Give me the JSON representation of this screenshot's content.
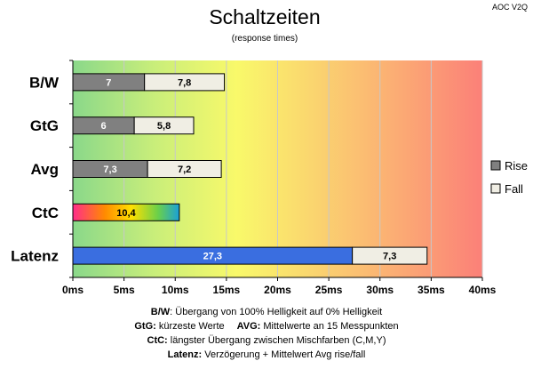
{
  "chart_data": {
    "type": "bar",
    "orientation": "horizontal",
    "stacked": true,
    "title": "Schaltzeiten",
    "subtitle": "(response times)",
    "corner_label": "AOC V2Q",
    "categories": [
      "B/W",
      "GtG",
      "Avg",
      "CtC",
      "Latenz"
    ],
    "series": [
      {
        "name": "Rise",
        "values": [
          7,
          6,
          7.3,
          10.4,
          27.3
        ],
        "labels": [
          "7",
          "6",
          "7,3",
          "10,4",
          "27,3"
        ]
      },
      {
        "name": "Fall",
        "values": [
          7.8,
          5.8,
          7.2,
          null,
          7.3
        ],
        "labels": [
          "7,8",
          "5,8",
          "7,2",
          "",
          "7,3"
        ]
      }
    ],
    "xlim": [
      0,
      40
    ],
    "xticks": [
      0,
      5,
      10,
      15,
      20,
      25,
      30,
      35,
      40
    ],
    "xtick_labels": [
      "0ms",
      "5ms",
      "10ms",
      "15ms",
      "20ms",
      "25ms",
      "30ms",
      "35ms",
      "40ms"
    ],
    "legend_position": "right",
    "background": "gradient green-yellow-red",
    "colors": {
      "rise": "#808080",
      "fall": "#f0eee4",
      "latenz_rise": "#3a6ee0",
      "ctc_gradient": [
        "#ff2d8a",
        "#ff8a00",
        "#ffe000",
        "#6ad04a",
        "#1aa0d8"
      ],
      "bg_green": "#8ad88a",
      "bg_yellow": "#f9f96a",
      "bg_red": "#fb8078"
    }
  },
  "notes": [
    {
      "key": "B/W",
      "text": ":  Übergang von 100% Helligkeit auf 0% Helligkeit"
    },
    {
      "key": "GtG:",
      "text": " kürzeste  Werte",
      "key2": "AVG:",
      "text2": " Mittelwerte  an 15 Messpunkten"
    },
    {
      "key": "CtC:",
      "text": " längster Übergang  zwischen Mischfarben  (C,M,Y)"
    },
    {
      "key": "Latenz:",
      "text": " Verzögerung  + Mittelwert  Avg rise/fall"
    }
  ]
}
